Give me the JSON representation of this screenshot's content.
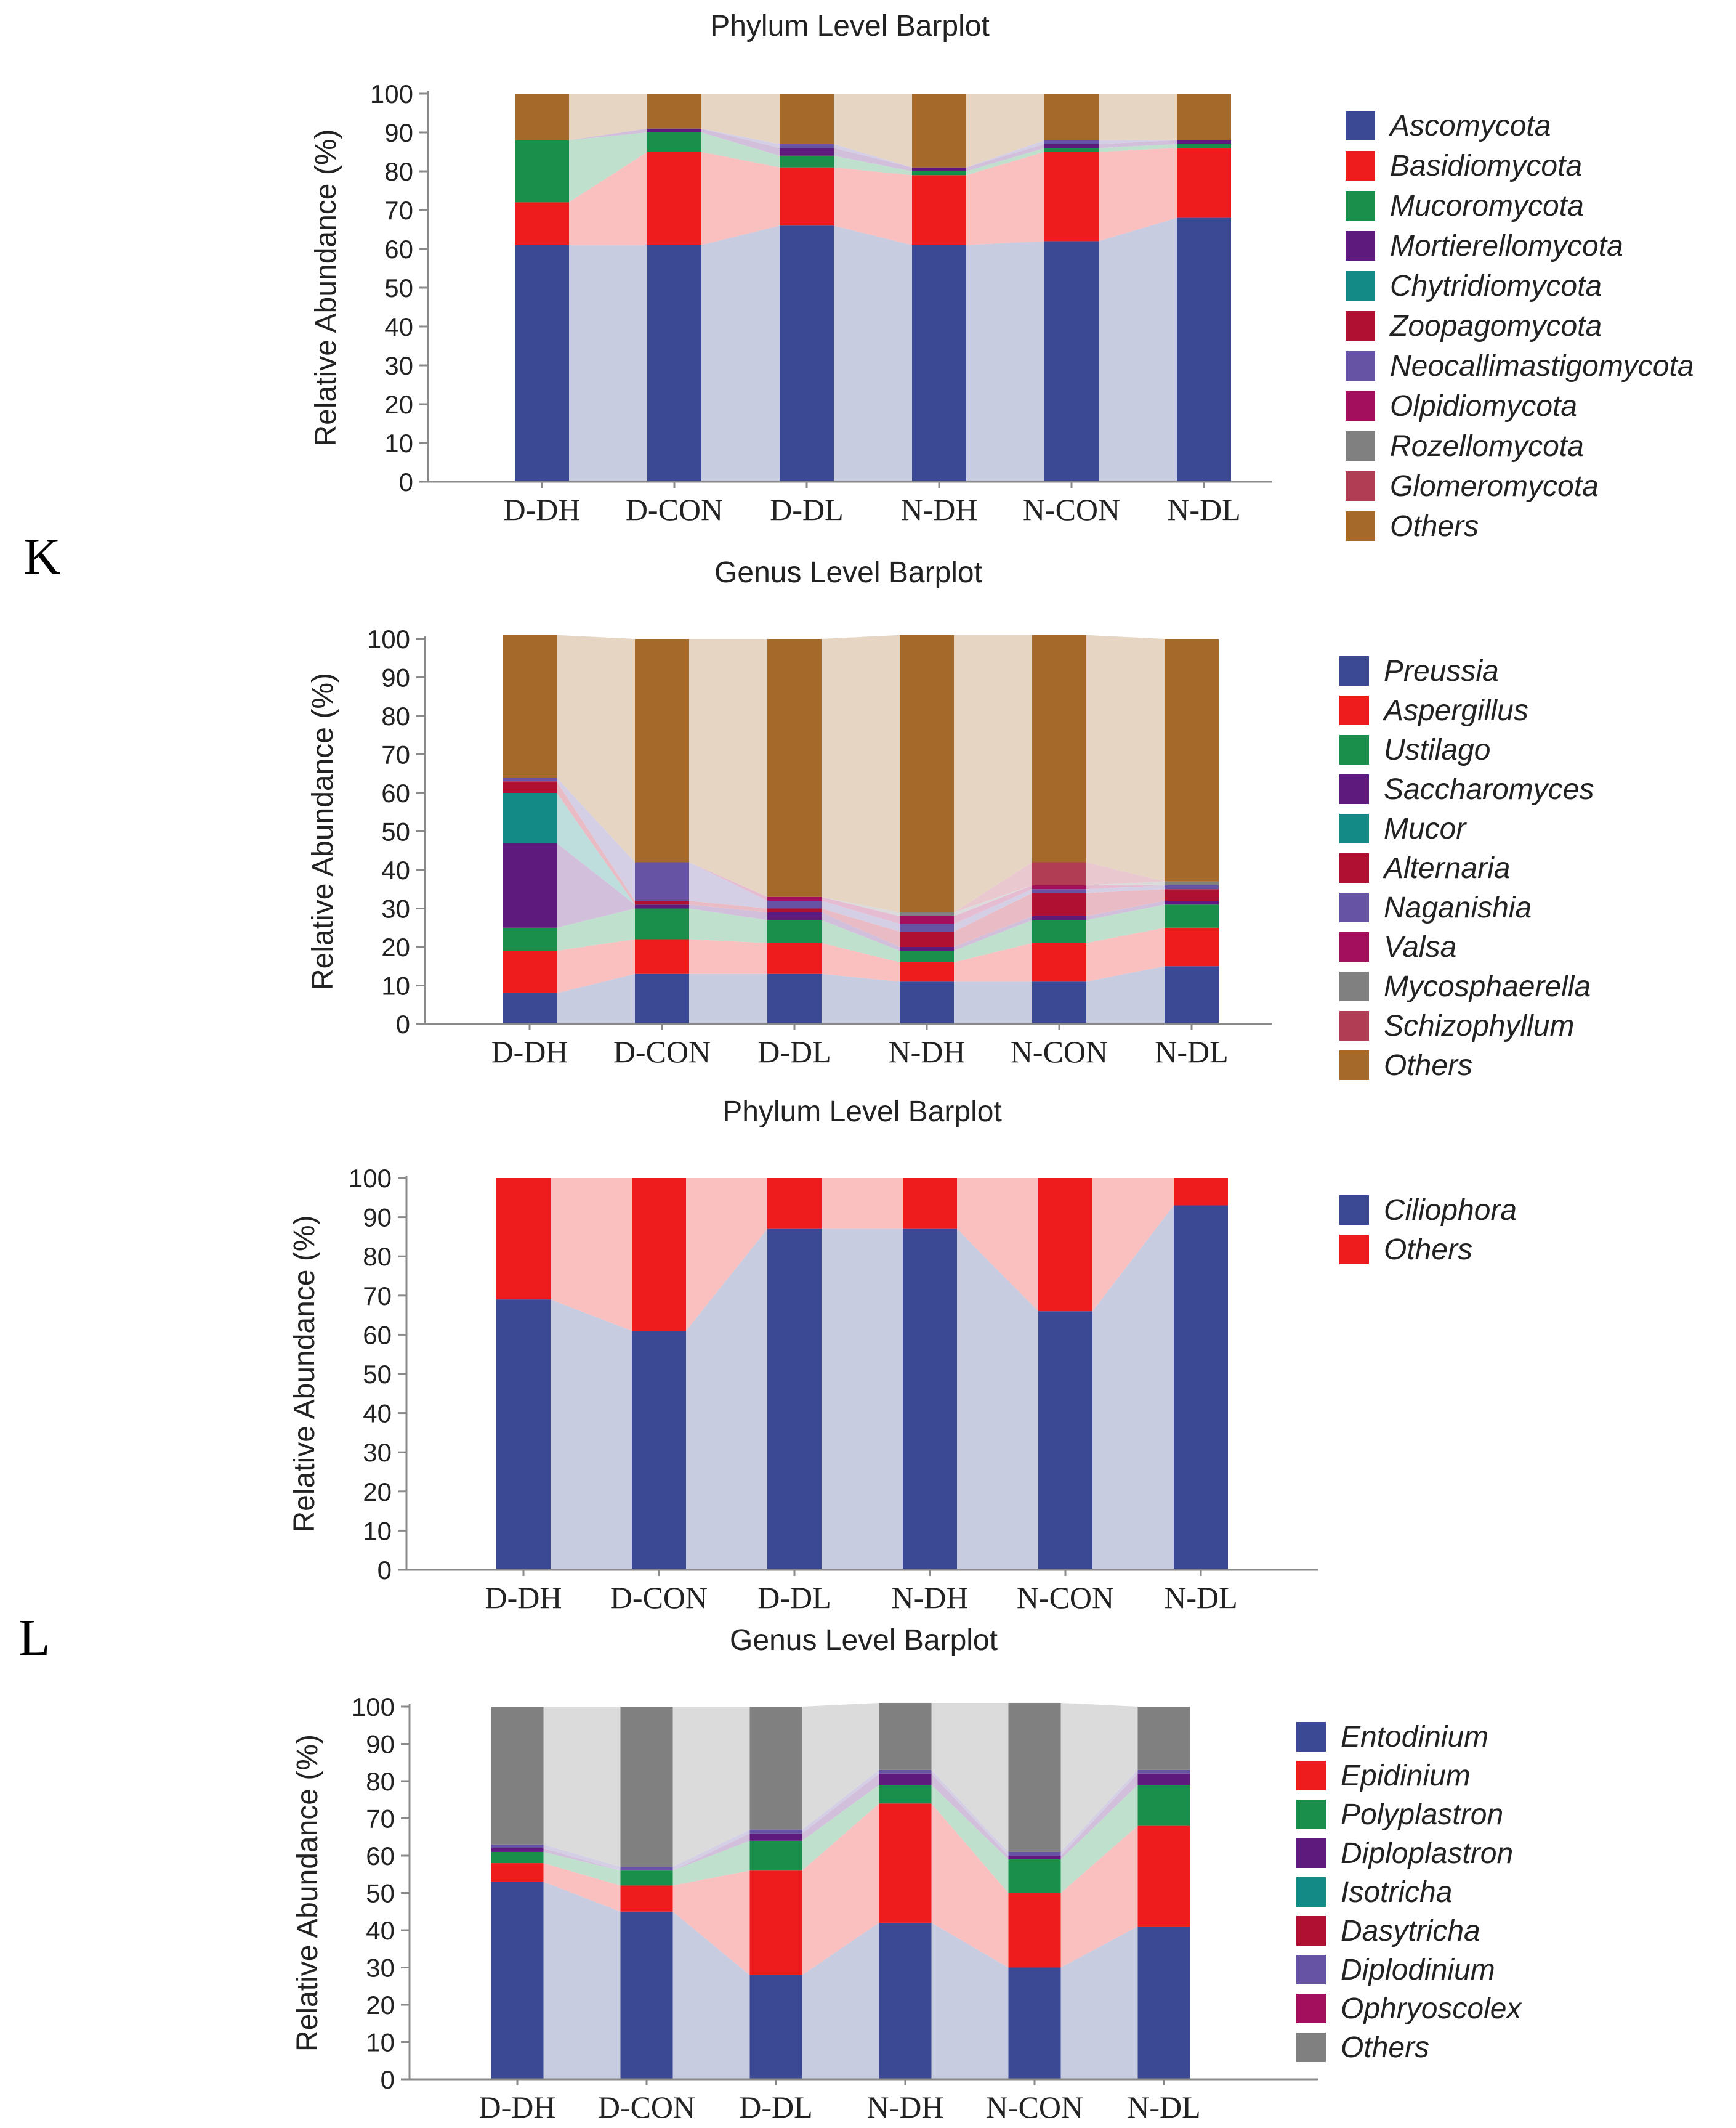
{
  "panel_labels": [
    "K",
    "L"
  ],
  "chart_data": [
    {
      "type": "bar",
      "stacked": true,
      "title": "Phylum Level Barplot",
      "xlabel": "",
      "ylabel": "Relative Abundance (%)",
      "ylim": [
        0,
        100
      ],
      "yticks": [
        "0",
        "10",
        "20",
        "30",
        "40",
        "50",
        "60",
        "70",
        "80",
        "90",
        "100"
      ],
      "categories": [
        "D-DH",
        "D-CON",
        "D-DL",
        "N-DH",
        "N-CON",
        "N-DL"
      ],
      "series": [
        {
          "name": "Ascomycota",
          "color": "#3b4894",
          "values": [
            61,
            61,
            66,
            61,
            62,
            68
          ]
        },
        {
          "name": "Basidiomycota",
          "color": "#ee1c1c",
          "values": [
            11,
            24,
            15,
            18,
            23,
            18
          ]
        },
        {
          "name": "Mucoromycota",
          "color": "#1a8f4b",
          "values": [
            16,
            5,
            3,
            1,
            1,
            1
          ]
        },
        {
          "name": "Mortierellomycota",
          "color": "#5e1a7d",
          "values": [
            0,
            1,
            2,
            1,
            1,
            1
          ]
        },
        {
          "name": "Chytridiomycota",
          "color": "#138a85",
          "values": [
            0,
            0,
            0,
            0,
            0,
            0
          ]
        },
        {
          "name": "Zoopagomycota",
          "color": "#b01031",
          "values": [
            0,
            0,
            0,
            0,
            0,
            0
          ]
        },
        {
          "name": "Neocallimastigomycota",
          "color": "#6653a3",
          "values": [
            0,
            0,
            1,
            0,
            1,
            0
          ]
        },
        {
          "name": "Olpidiomycota",
          "color": "#a30f5d",
          "values": [
            0,
            0,
            0,
            0,
            0,
            0
          ]
        },
        {
          "name": "Rozellomycota",
          "color": "#808080",
          "values": [
            0,
            0,
            0,
            0,
            0,
            0
          ]
        },
        {
          "name": "Glomeromycota",
          "color": "#b13d55",
          "values": [
            0,
            0,
            0,
            0,
            0,
            0
          ]
        },
        {
          "name": "Others",
          "color": "#a5692a",
          "values": [
            12,
            9,
            13,
            19,
            12,
            12
          ]
        }
      ]
    },
    {
      "type": "bar",
      "stacked": true,
      "title": "Genus Level Barplot",
      "xlabel": "",
      "ylabel": "Relative Abundance (%)",
      "ylim": [
        0,
        100
      ],
      "yticks": [
        "0",
        "10",
        "20",
        "30",
        "40",
        "50",
        "60",
        "70",
        "80",
        "90",
        "100"
      ],
      "categories": [
        "D-DH",
        "D-CON",
        "D-DL",
        "N-DH",
        "N-CON",
        "N-DL"
      ],
      "series": [
        {
          "name": "Preussia",
          "color": "#3b4894",
          "values": [
            8,
            13,
            13,
            11,
            11,
            15
          ]
        },
        {
          "name": "Aspergillus",
          "color": "#ee1c1c",
          "values": [
            11,
            9,
            8,
            5,
            10,
            10
          ]
        },
        {
          "name": "Ustilago",
          "color": "#1a8f4b",
          "values": [
            6,
            8,
            6,
            3,
            6,
            6
          ]
        },
        {
          "name": "Saccharomyces",
          "color": "#5e1a7d",
          "values": [
            22,
            1,
            2,
            1,
            1,
            1
          ]
        },
        {
          "name": "Mucor",
          "color": "#138a85",
          "values": [
            13,
            0,
            0,
            0,
            0,
            0
          ]
        },
        {
          "name": "Alternaria",
          "color": "#b01031",
          "values": [
            3,
            1,
            1,
            4,
            6,
            3
          ]
        },
        {
          "name": "Naganishia",
          "color": "#6653a3",
          "values": [
            1,
            10,
            2,
            2,
            1,
            1
          ]
        },
        {
          "name": "Valsa",
          "color": "#a30f5d",
          "values": [
            0,
            0,
            1,
            2,
            1,
            0
          ]
        },
        {
          "name": "Mycosphaerella",
          "color": "#808080",
          "values": [
            0,
            0,
            0,
            1,
            0,
            1
          ]
        },
        {
          "name": "Schizophyllum",
          "color": "#b13d55",
          "values": [
            0,
            0,
            0,
            0,
            6,
            0
          ]
        },
        {
          "name": "Others",
          "color": "#a5692a",
          "values": [
            37,
            58,
            67,
            72,
            59,
            63
          ]
        }
      ]
    },
    {
      "type": "bar",
      "stacked": true,
      "title": "Phylum Level Barplot",
      "xlabel": "",
      "ylabel": "Relative Abundance (%)",
      "ylim": [
        0,
        100
      ],
      "yticks": [
        "0",
        "10",
        "20",
        "30",
        "40",
        "50",
        "60",
        "70",
        "80",
        "90",
        "100"
      ],
      "categories": [
        "D-DH",
        "D-CON",
        "D-DL",
        "N-DH",
        "N-CON",
        "N-DL"
      ],
      "series": [
        {
          "name": "Ciliophora",
          "color": "#3b4894",
          "values": [
            69,
            61,
            87,
            87,
            66,
            93
          ]
        },
        {
          "name": "Others",
          "color": "#ee1c1c",
          "values": [
            31,
            39,
            13,
            13,
            34,
            7
          ]
        }
      ]
    },
    {
      "type": "bar",
      "stacked": true,
      "title": "Genus Level Barplot",
      "xlabel": "",
      "ylabel": "Relative Abundance (%)",
      "ylim": [
        0,
        100
      ],
      "yticks": [
        "0",
        "10",
        "20",
        "30",
        "40",
        "50",
        "60",
        "70",
        "80",
        "90",
        "100"
      ],
      "categories": [
        "D-DH",
        "D-CON",
        "D-DL",
        "N-DH",
        "N-CON",
        "N-DL"
      ],
      "series": [
        {
          "name": "Entodinium",
          "color": "#3b4894",
          "values": [
            53,
            45,
            28,
            42,
            30,
            41
          ]
        },
        {
          "name": "Epidinium",
          "color": "#ee1c1c",
          "values": [
            5,
            7,
            28,
            32,
            20,
            27
          ]
        },
        {
          "name": "Polyplastron",
          "color": "#1a8f4b",
          "values": [
            3,
            4,
            8,
            5,
            9,
            11
          ]
        },
        {
          "name": "Diploplastron",
          "color": "#5e1a7d",
          "values": [
            1,
            0,
            2,
            3,
            1,
            3
          ]
        },
        {
          "name": "Isotricha",
          "color": "#138a85",
          "values": [
            0,
            0,
            0,
            0,
            0,
            0
          ]
        },
        {
          "name": "Dasytricha",
          "color": "#b01031",
          "values": [
            0,
            0,
            0,
            0,
            0,
            0
          ]
        },
        {
          "name": "Diplodinium",
          "color": "#6653a3",
          "values": [
            1,
            1,
            1,
            1,
            1,
            1
          ]
        },
        {
          "name": "Ophryoscolex",
          "color": "#a30f5d",
          "values": [
            0,
            0,
            0,
            0,
            0,
            0
          ]
        },
        {
          "name": "Others",
          "color": "#808080",
          "values": [
            37,
            43,
            33,
            18,
            40,
            17
          ]
        }
      ]
    }
  ]
}
